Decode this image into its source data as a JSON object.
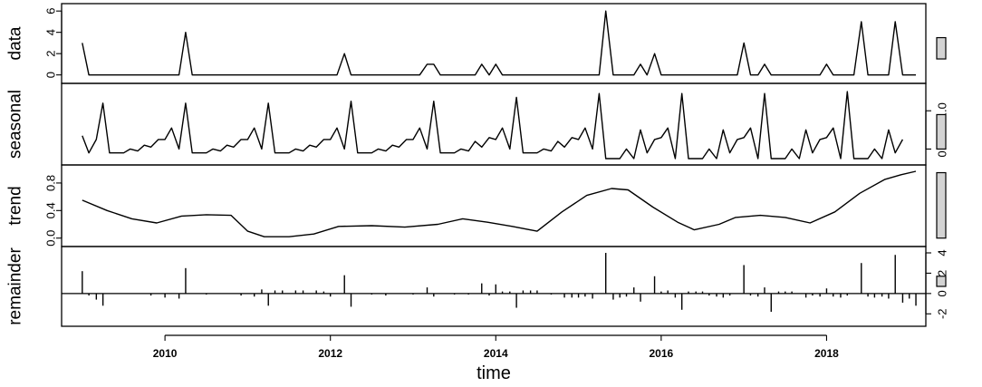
{
  "chart_data": {
    "type": "line",
    "xlabel": "time",
    "xlim": [
      2008.75,
      2019.2
    ],
    "x_ticks": [
      "2010",
      "2012",
      "2014",
      "2016",
      "2018"
    ],
    "x_tick_values": [
      2010,
      2012,
      2014,
      2016,
      2018
    ],
    "panels": [
      {
        "name": "data",
        "kind": "line",
        "ylim": [
          -0.2,
          6.1
        ],
        "y_ticks": [
          "0",
          "2",
          "4",
          "6"
        ],
        "y_tick_values": [
          0,
          2,
          4,
          6
        ],
        "tick_side": "left",
        "scale_bar": [
          1.5,
          3.5
        ],
        "points": [
          [
            2009.0,
            3
          ],
          [
            2009.08,
            0
          ],
          [
            2010.17,
            0
          ],
          [
            2010.25,
            4
          ],
          [
            2010.33,
            0
          ],
          [
            2012.08,
            0
          ],
          [
            2012.17,
            2
          ],
          [
            2012.25,
            0
          ],
          [
            2013.08,
            0
          ],
          [
            2013.17,
            1
          ],
          [
            2013.25,
            1
          ],
          [
            2013.33,
            0
          ],
          [
            2013.75,
            0
          ],
          [
            2013.83,
            1
          ],
          [
            2013.92,
            0
          ],
          [
            2014.0,
            1
          ],
          [
            2014.08,
            0
          ],
          [
            2015.25,
            0
          ],
          [
            2015.33,
            6
          ],
          [
            2015.42,
            0
          ],
          [
            2015.67,
            0
          ],
          [
            2015.75,
            1
          ],
          [
            2015.83,
            0
          ],
          [
            2015.92,
            2
          ],
          [
            2016.0,
            0
          ],
          [
            2016.92,
            0
          ],
          [
            2017.0,
            3
          ],
          [
            2017.08,
            0
          ],
          [
            2017.17,
            0
          ],
          [
            2017.25,
            1
          ],
          [
            2017.33,
            0
          ],
          [
            2017.92,
            0
          ],
          [
            2018.0,
            1
          ],
          [
            2018.08,
            0
          ],
          [
            2018.33,
            0
          ],
          [
            2018.42,
            5
          ],
          [
            2018.5,
            0
          ],
          [
            2018.75,
            0
          ],
          [
            2018.83,
            5
          ],
          [
            2018.92,
            0
          ],
          [
            2019.08,
            0
          ]
        ]
      },
      {
        "name": "seasonal",
        "kind": "line",
        "ylim": [
          -0.25,
          1.55
        ],
        "y_ticks": [
          "0.0",
          "1.0"
        ],
        "y_tick_values": [
          0,
          1
        ],
        "tick_side": "right",
        "scale_bar": [
          0.0,
          0.9
        ],
        "points": [
          [
            2009.0,
            0.35
          ],
          [
            2009.08,
            -0.1
          ],
          [
            2009.17,
            0.25
          ],
          [
            2009.25,
            1.2
          ],
          [
            2009.33,
            -0.1
          ],
          [
            2009.42,
            -0.1
          ],
          [
            2009.5,
            -0.1
          ],
          [
            2009.58,
            0.0
          ],
          [
            2009.67,
            -0.05
          ],
          [
            2009.75,
            0.1
          ],
          [
            2009.83,
            0.05
          ],
          [
            2009.92,
            0.25
          ],
          [
            2010.0,
            0.25
          ],
          [
            2010.08,
            0.55
          ],
          [
            2010.17,
            0.0
          ],
          [
            2010.25,
            1.2
          ],
          [
            2010.33,
            -0.1
          ],
          [
            2010.42,
            -0.1
          ],
          [
            2010.5,
            -0.1
          ],
          [
            2010.58,
            0.0
          ],
          [
            2010.67,
            -0.05
          ],
          [
            2010.75,
            0.1
          ],
          [
            2010.83,
            0.05
          ],
          [
            2010.92,
            0.25
          ],
          [
            2011.0,
            0.25
          ],
          [
            2011.08,
            0.55
          ],
          [
            2011.17,
            0.0
          ],
          [
            2011.25,
            1.2
          ],
          [
            2011.33,
            -0.1
          ],
          [
            2011.42,
            -0.1
          ],
          [
            2011.5,
            -0.1
          ],
          [
            2011.58,
            0.0
          ],
          [
            2011.67,
            -0.05
          ],
          [
            2011.75,
            0.1
          ],
          [
            2011.83,
            0.05
          ],
          [
            2011.92,
            0.25
          ],
          [
            2012.0,
            0.25
          ],
          [
            2012.08,
            0.55
          ],
          [
            2012.17,
            0.0
          ],
          [
            2012.25,
            1.25
          ],
          [
            2012.33,
            -0.1
          ],
          [
            2012.42,
            -0.1
          ],
          [
            2012.5,
            -0.1
          ],
          [
            2012.58,
            0.0
          ],
          [
            2012.67,
            -0.05
          ],
          [
            2012.75,
            0.1
          ],
          [
            2012.83,
            0.05
          ],
          [
            2012.92,
            0.25
          ],
          [
            2013.0,
            0.25
          ],
          [
            2013.08,
            0.55
          ],
          [
            2013.17,
            0.0
          ],
          [
            2013.25,
            1.25
          ],
          [
            2013.33,
            -0.1
          ],
          [
            2013.42,
            -0.1
          ],
          [
            2013.5,
            -0.1
          ],
          [
            2013.58,
            0.0
          ],
          [
            2013.67,
            -0.05
          ],
          [
            2013.75,
            0.2
          ],
          [
            2013.83,
            0.05
          ],
          [
            2013.92,
            0.3
          ],
          [
            2014.0,
            0.25
          ],
          [
            2014.08,
            0.55
          ],
          [
            2014.17,
            0.0
          ],
          [
            2014.25,
            1.35
          ],
          [
            2014.33,
            -0.1
          ],
          [
            2014.42,
            -0.1
          ],
          [
            2014.5,
            -0.1
          ],
          [
            2014.58,
            0.0
          ],
          [
            2014.67,
            -0.05
          ],
          [
            2014.75,
            0.2
          ],
          [
            2014.83,
            0.05
          ],
          [
            2014.92,
            0.3
          ],
          [
            2015.0,
            0.25
          ],
          [
            2015.08,
            0.55
          ],
          [
            2015.17,
            0.0
          ],
          [
            2015.25,
            1.45
          ],
          [
            2015.33,
            -0.25
          ],
          [
            2015.42,
            -0.25
          ],
          [
            2015.5,
            -0.25
          ],
          [
            2015.58,
            0.0
          ],
          [
            2015.67,
            -0.25
          ],
          [
            2015.75,
            0.5
          ],
          [
            2015.83,
            -0.1
          ],
          [
            2015.92,
            0.25
          ],
          [
            2016.0,
            0.3
          ],
          [
            2016.08,
            0.55
          ],
          [
            2016.17,
            -0.25
          ],
          [
            2016.25,
            1.45
          ],
          [
            2016.33,
            -0.25
          ],
          [
            2016.42,
            -0.25
          ],
          [
            2016.5,
            -0.25
          ],
          [
            2016.58,
            0.0
          ],
          [
            2016.67,
            -0.25
          ],
          [
            2016.75,
            0.5
          ],
          [
            2016.83,
            -0.1
          ],
          [
            2016.92,
            0.25
          ],
          [
            2017.0,
            0.3
          ],
          [
            2017.08,
            0.55
          ],
          [
            2017.17,
            -0.25
          ],
          [
            2017.25,
            1.45
          ],
          [
            2017.33,
            -0.25
          ],
          [
            2017.42,
            -0.25
          ],
          [
            2017.5,
            -0.25
          ],
          [
            2017.58,
            0.0
          ],
          [
            2017.67,
            -0.25
          ],
          [
            2017.75,
            0.5
          ],
          [
            2017.83,
            -0.1
          ],
          [
            2017.92,
            0.25
          ],
          [
            2018.0,
            0.3
          ],
          [
            2018.08,
            0.55
          ],
          [
            2018.17,
            -0.25
          ],
          [
            2018.25,
            1.5
          ],
          [
            2018.33,
            -0.25
          ],
          [
            2018.42,
            -0.25
          ],
          [
            2018.5,
            -0.25
          ],
          [
            2018.58,
            0.0
          ],
          [
            2018.67,
            -0.25
          ],
          [
            2018.75,
            0.5
          ],
          [
            2018.83,
            -0.1
          ],
          [
            2018.92,
            0.25
          ]
        ]
      },
      {
        "name": "trend",
        "kind": "line",
        "ylim": [
          -0.03,
          0.97
        ],
        "y_ticks": [
          "0.0",
          "0.4",
          "0.8"
        ],
        "y_tick_values": [
          0,
          0.4,
          0.8
        ],
        "tick_side": "left",
        "scale_bar": [
          0.0,
          0.95
        ],
        "points": [
          [
            2009.0,
            0.55
          ],
          [
            2009.3,
            0.4
          ],
          [
            2009.6,
            0.28
          ],
          [
            2009.9,
            0.22
          ],
          [
            2010.2,
            0.32
          ],
          [
            2010.5,
            0.34
          ],
          [
            2010.8,
            0.33
          ],
          [
            2011.0,
            0.1
          ],
          [
            2011.2,
            0.02
          ],
          [
            2011.5,
            0.02
          ],
          [
            2011.8,
            0.06
          ],
          [
            2012.1,
            0.17
          ],
          [
            2012.5,
            0.18
          ],
          [
            2012.9,
            0.16
          ],
          [
            2013.3,
            0.2
          ],
          [
            2013.6,
            0.28
          ],
          [
            2013.9,
            0.23
          ],
          [
            2014.2,
            0.17
          ],
          [
            2014.5,
            0.1
          ],
          [
            2014.8,
            0.38
          ],
          [
            2015.1,
            0.62
          ],
          [
            2015.4,
            0.72
          ],
          [
            2015.6,
            0.7
          ],
          [
            2015.9,
            0.45
          ],
          [
            2016.2,
            0.23
          ],
          [
            2016.4,
            0.12
          ],
          [
            2016.7,
            0.2
          ],
          [
            2016.9,
            0.3
          ],
          [
            2017.2,
            0.33
          ],
          [
            2017.5,
            0.3
          ],
          [
            2017.8,
            0.22
          ],
          [
            2018.1,
            0.38
          ],
          [
            2018.4,
            0.65
          ],
          [
            2018.7,
            0.85
          ],
          [
            2018.9,
            0.92
          ],
          [
            2019.08,
            0.97
          ]
        ]
      },
      {
        "name": "remainder",
        "kind": "spikes",
        "ylim": [
          -2.6,
          4.0
        ],
        "y_ticks": [
          "-2",
          "0",
          "2",
          "4"
        ],
        "y_tick_values": [
          -2,
          0,
          2,
          4
        ],
        "tick_side": "right",
        "scale_bar": [
          0.7,
          1.7
        ],
        "points": [
          [
            2009.0,
            2.2
          ],
          [
            2009.08,
            -0.2
          ],
          [
            2009.17,
            -0.6
          ],
          [
            2009.25,
            -1.2
          ],
          [
            2009.83,
            -0.2
          ],
          [
            2010.0,
            -0.4
          ],
          [
            2010.17,
            -0.5
          ],
          [
            2010.25,
            2.5
          ],
          [
            2010.5,
            -0.1
          ],
          [
            2010.92,
            -0.2
          ],
          [
            2011.08,
            -0.3
          ],
          [
            2011.17,
            0.4
          ],
          [
            2011.25,
            -1.2
          ],
          [
            2011.33,
            0.3
          ],
          [
            2011.42,
            0.3
          ],
          [
            2011.58,
            0.3
          ],
          [
            2011.67,
            0.3
          ],
          [
            2011.83,
            0.3
          ],
          [
            2011.92,
            0.2
          ],
          [
            2012.0,
            -0.3
          ],
          [
            2012.17,
            1.8
          ],
          [
            2012.25,
            -1.3
          ],
          [
            2012.5,
            -0.1
          ],
          [
            2012.67,
            -0.2
          ],
          [
            2013.0,
            -0.1
          ],
          [
            2013.17,
            0.6
          ],
          [
            2013.25,
            -0.3
          ],
          [
            2013.5,
            -0.1
          ],
          [
            2013.67,
            -0.1
          ],
          [
            2013.83,
            1.0
          ],
          [
            2013.92,
            -0.2
          ],
          [
            2014.0,
            0.9
          ],
          [
            2014.08,
            0.2
          ],
          [
            2014.17,
            0.2
          ],
          [
            2014.25,
            -1.4
          ],
          [
            2014.33,
            0.3
          ],
          [
            2014.42,
            0.3
          ],
          [
            2014.5,
            0.3
          ],
          [
            2014.67,
            -0.1
          ],
          [
            2014.83,
            -0.4
          ],
          [
            2014.92,
            -0.4
          ],
          [
            2015.0,
            -0.4
          ],
          [
            2015.08,
            -0.3
          ],
          [
            2015.17,
            -0.5
          ],
          [
            2015.33,
            4.0
          ],
          [
            2015.42,
            -0.6
          ],
          [
            2015.5,
            -0.4
          ],
          [
            2015.58,
            -0.3
          ],
          [
            2015.67,
            0.6
          ],
          [
            2015.75,
            -0.8
          ],
          [
            2015.92,
            1.7
          ],
          [
            2016.0,
            0.2
          ],
          [
            2016.08,
            0.3
          ],
          [
            2016.17,
            -0.4
          ],
          [
            2016.25,
            -1.6
          ],
          [
            2016.33,
            0.2
          ],
          [
            2016.42,
            0.2
          ],
          [
            2016.5,
            0.2
          ],
          [
            2016.58,
            -0.2
          ],
          [
            2016.67,
            -0.3
          ],
          [
            2016.75,
            -0.4
          ],
          [
            2016.83,
            -0.2
          ],
          [
            2017.0,
            2.8
          ],
          [
            2017.08,
            -0.2
          ],
          [
            2017.17,
            -0.3
          ],
          [
            2017.25,
            0.6
          ],
          [
            2017.33,
            -1.8
          ],
          [
            2017.42,
            0.2
          ],
          [
            2017.5,
            0.2
          ],
          [
            2017.58,
            0.2
          ],
          [
            2017.75,
            -0.4
          ],
          [
            2017.83,
            -0.2
          ],
          [
            2017.92,
            -0.3
          ],
          [
            2018.0,
            0.5
          ],
          [
            2018.08,
            -0.3
          ],
          [
            2018.17,
            -0.4
          ],
          [
            2018.25,
            -0.2
          ],
          [
            2018.42,
            3.0
          ],
          [
            2018.5,
            -0.3
          ],
          [
            2018.58,
            -0.4
          ],
          [
            2018.67,
            -0.3
          ],
          [
            2018.75,
            -0.5
          ],
          [
            2018.83,
            3.8
          ],
          [
            2018.92,
            -0.9
          ],
          [
            2019.0,
            -0.5
          ],
          [
            2019.08,
            -1.2
          ]
        ]
      }
    ]
  }
}
